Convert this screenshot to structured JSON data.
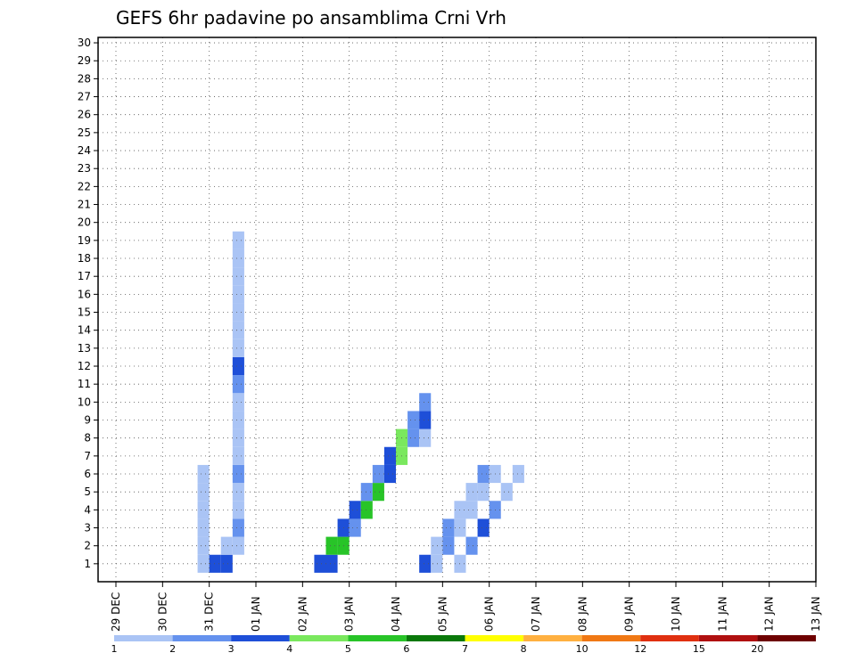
{
  "chart_data": {
    "type": "heatmap",
    "title": "GEFS 6hr padavine po ansamblima Crni Vrh",
    "x_tick_labels": [
      "29 DEC",
      "30 DEC",
      "31 DEC",
      "01 JAN",
      "02 JAN",
      "03 JAN",
      "04 JAN",
      "05 JAN",
      "06 JAN",
      "07 JAN",
      "08 JAN",
      "09 JAN",
      "10 JAN",
      "11 JAN",
      "12 JAN",
      "13 JAN"
    ],
    "y_tick_labels": [
      "1",
      "2",
      "3",
      "4",
      "5",
      "6",
      "7",
      "8",
      "9",
      "10",
      "11",
      "12",
      "13",
      "14",
      "15",
      "16",
      "17",
      "18",
      "19",
      "20",
      "21",
      "22",
      "23",
      "24",
      "25",
      "26",
      "27",
      "28",
      "29",
      "30"
    ],
    "ylim": [
      0,
      30
    ],
    "grid": "dotted",
    "legend_position": "bottom",
    "legend_levels": [
      "1",
      "2",
      "3",
      "4",
      "5",
      "6",
      "7",
      "8",
      "10",
      "12",
      "15",
      "20"
    ],
    "legend_colors": [
      "#aac4f5",
      "#6592ee",
      "#1e4fd8",
      "#7ae85e",
      "#28c428",
      "#0a780a",
      "#ffff00",
      "#ffb040",
      "#f07814",
      "#e03010",
      "#b01010",
      "#6e0000"
    ],
    "x_data_start": "29 DEC 00Z",
    "x_step": "6h",
    "cells": [
      [
        1,
        7,
        1
      ],
      [
        2,
        7,
        1
      ],
      [
        3,
        7,
        1
      ],
      [
        4,
        7,
        1
      ],
      [
        5,
        7,
        1
      ],
      [
        6,
        7,
        1
      ],
      [
        1,
        8,
        3
      ],
      [
        1,
        9,
        3
      ],
      [
        2,
        9,
        1
      ],
      [
        2,
        10,
        1
      ],
      [
        3,
        10,
        2
      ],
      [
        4,
        10,
        1
      ],
      [
        5,
        10,
        1
      ],
      [
        6,
        10,
        2
      ],
      [
        7,
        10,
        1
      ],
      [
        8,
        10,
        1
      ],
      [
        9,
        10,
        1
      ],
      [
        10,
        10,
        1
      ],
      [
        11,
        10,
        2
      ],
      [
        12,
        10,
        3
      ],
      [
        13,
        10,
        1
      ],
      [
        14,
        10,
        1
      ],
      [
        15,
        10,
        1
      ],
      [
        16,
        10,
        1
      ],
      [
        17,
        10,
        1
      ],
      [
        18,
        10,
        1
      ],
      [
        19,
        10,
        1
      ],
      [
        1,
        17,
        3
      ],
      [
        1,
        18,
        3
      ],
      [
        2,
        18,
        5
      ],
      [
        2,
        19,
        5
      ],
      [
        3,
        19,
        3
      ],
      [
        3,
        20,
        2
      ],
      [
        4,
        20,
        3
      ],
      [
        4,
        21,
        5
      ],
      [
        5,
        21,
        2
      ],
      [
        5,
        22,
        5
      ],
      [
        6,
        22,
        2
      ],
      [
        6,
        23,
        3
      ],
      [
        7,
        23,
        3
      ],
      [
        7,
        24,
        4
      ],
      [
        8,
        24,
        4
      ],
      [
        8,
        25,
        2
      ],
      [
        8,
        26,
        1
      ],
      [
        9,
        25,
        2
      ],
      [
        9,
        26,
        3
      ],
      [
        10,
        26,
        2
      ],
      [
        1,
        26,
        3
      ],
      [
        1,
        27,
        1
      ],
      [
        2,
        27,
        1
      ],
      [
        2,
        28,
        2
      ],
      [
        3,
        28,
        2
      ],
      [
        3,
        29,
        1
      ],
      [
        4,
        29,
        1
      ],
      [
        4,
        30,
        1
      ],
      [
        5,
        30,
        1
      ],
      [
        5,
        31,
        1
      ],
      [
        6,
        31,
        2
      ],
      [
        6,
        32,
        1
      ],
      [
        1,
        29,
        1
      ],
      [
        2,
        30,
        2
      ],
      [
        3,
        31,
        3
      ],
      [
        4,
        32,
        2
      ],
      [
        5,
        33,
        1
      ],
      [
        6,
        34,
        1
      ]
    ]
  }
}
